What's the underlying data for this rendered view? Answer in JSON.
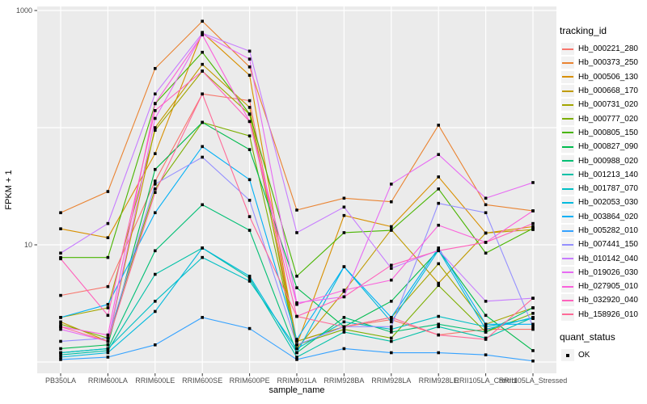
{
  "colors": {
    "panel_bg": "#EBEBEB",
    "grid": "#FFFFFF",
    "tick_text": "#4D4D4D",
    "tick_mark": "#333333",
    "point": "#000000"
  },
  "y_axis": {
    "label": "FPKM + 1",
    "scale": "log10",
    "ticks": [
      {
        "label": "1000",
        "value": 1000
      },
      {
        "label": "10",
        "value": 10
      }
    ]
  },
  "x_axis": {
    "label": "sample_name"
  },
  "legend": {
    "tracking_title": "tracking_id",
    "quant_title": "quant_status",
    "quant_items": [
      {
        "label": "OK",
        "marker": "black-square"
      }
    ]
  },
  "chart_data": {
    "type": "line",
    "title": "",
    "xlabel": "sample_name",
    "ylabel": "FPKM + 1",
    "y_scale": "log10",
    "ylim": [
      1,
      1080
    ],
    "gridline_values": [
      1,
      10,
      100,
      1000
    ],
    "legend_position": "right",
    "point_marker": "black-square",
    "categories": [
      "PB350LA",
      "RRIM600LA",
      "RRIM600LE",
      "RRIM600SE",
      "RRIM600PE",
      "RRIM901LA",
      "RRIM928BA",
      "RRIM928LA",
      "RRIM928LE",
      "RRII105LA_Control",
      "RRII105LA_Stressed"
    ],
    "series": [
      {
        "name": "Hb_000221_280",
        "color": "#F8766D",
        "values": [
          3.7,
          4.4,
          35,
          194,
          170,
          1.5,
          2.0,
          2.3,
          1.7,
          1.9,
          1.9
        ]
      },
      {
        "name": "Hb_000373_250",
        "color": "#EA8331",
        "values": [
          18.8,
          28.5,
          320,
          810,
          330,
          19.8,
          25,
          23.3,
          105,
          22,
          19.5
        ]
      },
      {
        "name": "Hb_000506_130",
        "color": "#D89000",
        "values": [
          13.7,
          11.5,
          60,
          650,
          280,
          1.4,
          17.8,
          14.3,
          38,
          12.6,
          14.3
        ]
      },
      {
        "name": "Hb_000668_170",
        "color": "#C09B00",
        "values": [
          2.2,
          1.5,
          100,
          347,
          149,
          1.3,
          4.0,
          13.5,
          4.7,
          12.6,
          13.5
        ]
      },
      {
        "name": "Hb_000731_020",
        "color": "#A3A500",
        "values": [
          2.4,
          2.9,
          95,
          304,
          130,
          1.5,
          2.0,
          2.4,
          6.9,
          2.1,
          2.9
        ]
      },
      {
        "name": "Hb_000777_020",
        "color": "#7CAE00",
        "values": [
          2.1,
          1.6,
          30,
          111,
          85,
          1.4,
          1.9,
          1.6,
          4.5,
          1.8,
          2.6
        ]
      },
      {
        "name": "Hb_000805_150",
        "color": "#49B500",
        "values": [
          7.8,
          7.8,
          160,
          440,
          131,
          5.4,
          12.7,
          13.3,
          30,
          8.5,
          13.8
        ]
      },
      {
        "name": "Hb_000827_090",
        "color": "#00BB4E",
        "values": [
          1.3,
          1.4,
          44,
          111,
          65,
          4.3,
          2.0,
          3.3,
          9.0,
          2.5,
          1.25
        ]
      },
      {
        "name": "Hb_000988_020",
        "color": "#00BF74",
        "values": [
          1.2,
          1.3,
          8.9,
          22,
          13.3,
          1.2,
          2.4,
          1.8,
          2.1,
          1.8,
          2.9
        ]
      },
      {
        "name": "Hb_001213_140",
        "color": "#00C1A7",
        "values": [
          1.15,
          1.25,
          5.6,
          9.4,
          5.2,
          1.1,
          1.8,
          1.5,
          2.0,
          1.6,
          2.4
        ]
      },
      {
        "name": "Hb_001787_070",
        "color": "#00BFC4",
        "values": [
          1.2,
          1.3,
          3.3,
          7.8,
          4.9,
          1.3,
          2.2,
          1.9,
          2.45,
          2.0,
          2.35
        ]
      },
      {
        "name": "Hb_002053_030",
        "color": "#00BADE",
        "values": [
          1.1,
          1.2,
          2.7,
          9.4,
          5.4,
          1.2,
          6.5,
          2.2,
          9.0,
          1.9,
          2.4
        ]
      },
      {
        "name": "Hb_003864_020",
        "color": "#00B0F6",
        "values": [
          2.4,
          3.1,
          18.8,
          69,
          36,
          1.56,
          6.5,
          2.4,
          9.4,
          2.1,
          2.1
        ]
      },
      {
        "name": "Hb_005282_010",
        "color": "#35A2FF",
        "values": [
          1.05,
          1.1,
          1.4,
          2.4,
          1.93,
          1.05,
          1.3,
          1.2,
          1.2,
          1.15,
          1.02
        ]
      },
      {
        "name": "Hb_007441_150",
        "color": "#9590FF",
        "values": [
          1.5,
          1.6,
          33,
          56,
          24,
          1.4,
          2.0,
          2.0,
          22.6,
          18.8,
          2.0
        ]
      },
      {
        "name": "Hb_010142_040",
        "color": "#C77CFF",
        "values": [
          8.5,
          15.2,
          194,
          640,
          450,
          12.7,
          21,
          6.3,
          9.0,
          3.3,
          3.5
        ]
      },
      {
        "name": "Hb_019026_030",
        "color": "#E76BF3",
        "values": [
          1.9,
          1.5,
          120,
          630,
          385,
          3.2,
          3.6,
          33,
          59,
          25,
          34
        ]
      },
      {
        "name": "Hb_027905_010",
        "color": "#FA62DB",
        "values": [
          2.0,
          1.7,
          161,
          620,
          113,
          3.1,
          4.1,
          5.0,
          14.7,
          10.5,
          19.5
        ]
      },
      {
        "name": "Hb_032920_040",
        "color": "#FF62BC",
        "values": [
          7.6,
          2.5,
          140,
          304,
          113,
          2.45,
          3.6,
          6.7,
          8.9,
          10.5,
          15.2
        ]
      },
      {
        "name": "Hb_158926_010",
        "color": "#FF6A98",
        "values": [
          2.0,
          1.5,
          28,
          194,
          17.4,
          2.45,
          2.0,
          2.4,
          1.7,
          1.56,
          3.5
        ]
      }
    ]
  }
}
